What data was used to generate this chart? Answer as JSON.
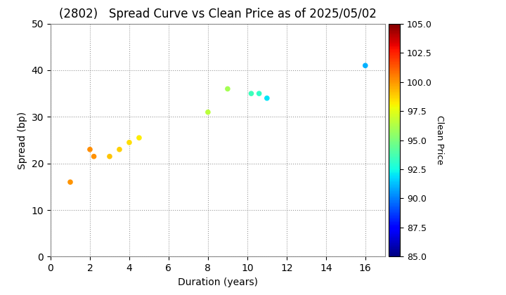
{
  "title": "(2802)   Spread Curve vs Clean Price as of 2025/05/02",
  "xlabel": "Duration (years)",
  "ylabel": "Spread (bp)",
  "points": [
    {
      "duration": 1.0,
      "spread": 16.0,
      "clean_price": 100.0
    },
    {
      "duration": 2.0,
      "spread": 23.0,
      "clean_price": 100.2
    },
    {
      "duration": 2.2,
      "spread": 21.5,
      "clean_price": 100.1
    },
    {
      "duration": 3.0,
      "spread": 21.5,
      "clean_price": 99.0
    },
    {
      "duration": 3.5,
      "spread": 23.0,
      "clean_price": 98.8
    },
    {
      "duration": 4.0,
      "spread": 24.5,
      "clean_price": 98.5
    },
    {
      "duration": 4.5,
      "spread": 25.5,
      "clean_price": 98.2
    },
    {
      "duration": 8.0,
      "spread": 31.0,
      "clean_price": 96.5
    },
    {
      "duration": 9.0,
      "spread": 36.0,
      "clean_price": 96.0
    },
    {
      "duration": 10.2,
      "spread": 35.0,
      "clean_price": 93.5
    },
    {
      "duration": 10.6,
      "spread": 35.0,
      "clean_price": 93.2
    },
    {
      "duration": 11.0,
      "spread": 34.0,
      "clean_price": 92.0
    },
    {
      "duration": 16.0,
      "spread": 41.0,
      "clean_price": 91.0
    }
  ],
  "cmap": "jet",
  "clim": [
    85.0,
    105.0
  ],
  "colorbar_label": "Clean Price",
  "colorbar_ticks": [
    85.0,
    87.5,
    90.0,
    92.5,
    95.0,
    97.5,
    100.0,
    102.5,
    105.0
  ],
  "xlim": [
    0,
    17
  ],
  "ylim": [
    0,
    50
  ],
  "xticks": [
    0,
    2,
    4,
    6,
    8,
    10,
    12,
    14,
    16
  ],
  "yticks": [
    0,
    10,
    20,
    30,
    40,
    50
  ],
  "marker_size": 20,
  "background_color": "#ffffff",
  "grid_color": "#999999",
  "title_fontsize": 12,
  "axis_fontsize": 10,
  "colorbar_fontsize": 9
}
